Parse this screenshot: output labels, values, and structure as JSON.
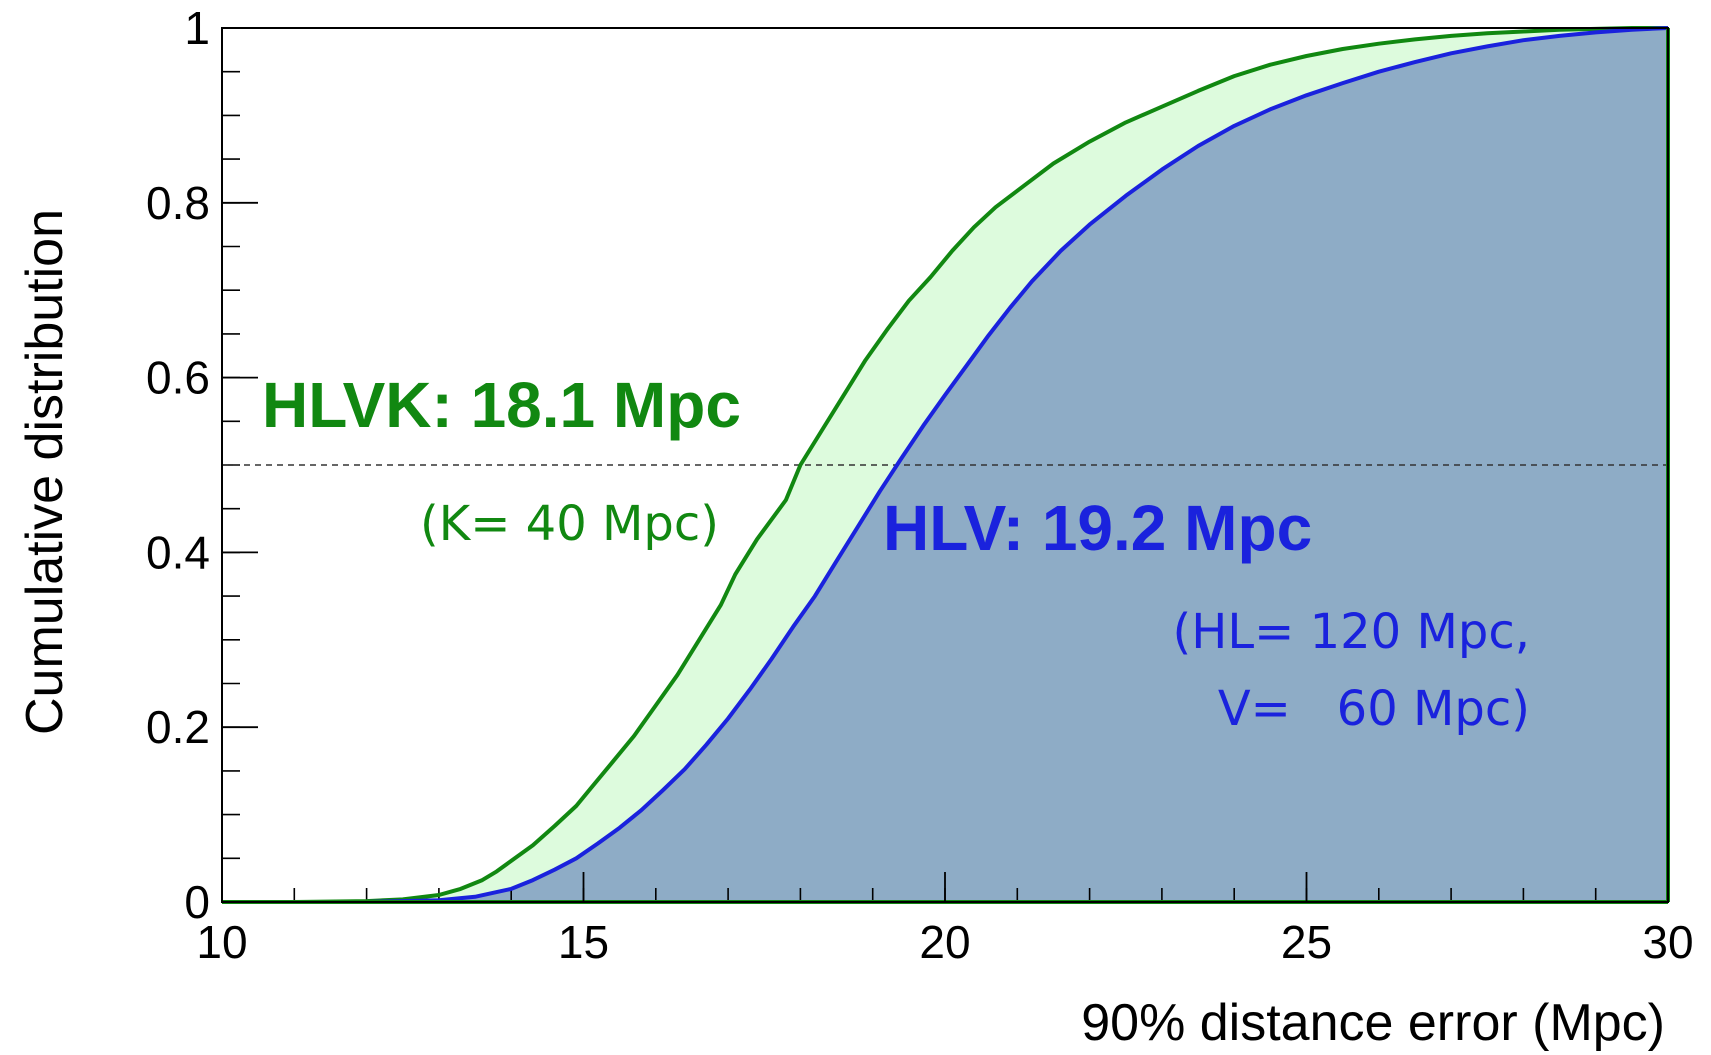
{
  "chart_data": {
    "type": "area",
    "title": "",
    "xlabel": "90% distance error (Mpc)",
    "ylabel": "Cumulative distribution",
    "xlim": [
      10,
      30
    ],
    "ylim": [
      0,
      1
    ],
    "x_ticks": [
      {
        "value": 10,
        "label": "10"
      },
      {
        "value": 15,
        "label": "15"
      },
      {
        "value": 20,
        "label": "20"
      },
      {
        "value": 25,
        "label": "25"
      },
      {
        "value": 30,
        "label": "30"
      }
    ],
    "y_ticks": [
      {
        "value": 0,
        "label": "0"
      },
      {
        "value": 0.2,
        "label": "0.2"
      },
      {
        "value": 0.4,
        "label": "0.4"
      },
      {
        "value": 0.6,
        "label": "0.6"
      },
      {
        "value": 0.8,
        "label": "0.8"
      },
      {
        "value": 1,
        "label": "1"
      }
    ],
    "reference_line": {
      "y": 0.5,
      "style": "dashed"
    },
    "grid": false,
    "series": [
      {
        "name": "HLVK",
        "color": "#118811",
        "fill": "#ddfbdd",
        "x": [
          10,
          11,
          12,
          12.5,
          13,
          13.3,
          13.6,
          13.8,
          14,
          14.3,
          14.6,
          14.9,
          15.1,
          15.4,
          15.7,
          16,
          16.3,
          16.6,
          16.9,
          17.1,
          17.4,
          17.8,
          18,
          18.3,
          18.6,
          18.9,
          19.2,
          19.5,
          19.8,
          20.1,
          20.4,
          20.7,
          21.1,
          21.5,
          22,
          22.5,
          23,
          23.5,
          24,
          24.5,
          25,
          25.5,
          26,
          26.5,
          27,
          27.5,
          28,
          28.5,
          29,
          29.5,
          30
        ],
        "y": [
          0,
          0,
          0.001,
          0.003,
          0.008,
          0.015,
          0.025,
          0.035,
          0.047,
          0.065,
          0.087,
          0.11,
          0.13,
          0.16,
          0.19,
          0.225,
          0.26,
          0.3,
          0.34,
          0.375,
          0.415,
          0.46,
          0.5,
          0.54,
          0.58,
          0.62,
          0.655,
          0.688,
          0.715,
          0.745,
          0.772,
          0.795,
          0.82,
          0.845,
          0.87,
          0.892,
          0.91,
          0.928,
          0.945,
          0.958,
          0.968,
          0.976,
          0.982,
          0.987,
          0.991,
          0.994,
          0.996,
          0.998,
          0.999,
          1,
          1
        ]
      },
      {
        "name": "HLV",
        "color": "#1a22dd",
        "fill": "#8eacc6",
        "x": [
          10,
          12,
          13,
          13.5,
          14,
          14.3,
          14.6,
          14.9,
          15.2,
          15.5,
          15.8,
          16.1,
          16.4,
          16.7,
          17,
          17.3,
          17.6,
          17.9,
          18.2,
          18.5,
          18.8,
          19.1,
          19.4,
          19.7,
          20,
          20.3,
          20.6,
          20.9,
          21.2,
          21.6,
          22,
          22.5,
          23,
          23.5,
          24,
          24.5,
          25,
          25.5,
          26,
          26.5,
          27,
          27.5,
          28,
          28.5,
          29,
          29.5,
          30
        ],
        "y": [
          0,
          0,
          0.002,
          0.006,
          0.015,
          0.025,
          0.037,
          0.05,
          0.067,
          0.085,
          0.105,
          0.128,
          0.152,
          0.18,
          0.21,
          0.243,
          0.278,
          0.315,
          0.35,
          0.39,
          0.43,
          0.47,
          0.508,
          0.545,
          0.58,
          0.614,
          0.648,
          0.68,
          0.71,
          0.745,
          0.775,
          0.808,
          0.838,
          0.865,
          0.888,
          0.907,
          0.923,
          0.937,
          0.95,
          0.961,
          0.971,
          0.979,
          0.986,
          0.991,
          0.995,
          0.998,
          1
        ]
      }
    ],
    "annotations": [
      {
        "text": "HLVK: 18.1 Mpc",
        "color": "#118811",
        "style": "bold"
      },
      {
        "text": "(K= 40 Mpc)",
        "color": "#118811",
        "style": "normal"
      },
      {
        "text": "HLV: 19.2 Mpc",
        "color": "#1a22dd",
        "style": "bold"
      },
      {
        "text": "(HL= 120 Mpc,",
        "color": "#1a22dd",
        "style": "normal"
      },
      {
        "text": "V=   60 Mpc)",
        "color": "#1a22dd",
        "style": "normal"
      }
    ]
  }
}
